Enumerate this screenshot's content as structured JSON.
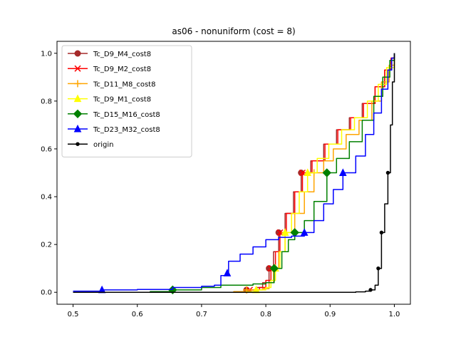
{
  "chart_data": {
    "type": "line",
    "title": "as06 - nonuniform (cost = 8)",
    "xlabel": "",
    "ylabel": "",
    "xlim": [
      0.475,
      1.025
    ],
    "ylim": [
      -0.05,
      1.05
    ],
    "xticks": [
      "0.5",
      "0.6",
      "0.7",
      "0.8",
      "0.9",
      "1.0"
    ],
    "xtick_values": [
      0.5,
      0.6,
      0.7,
      0.8,
      0.9,
      1.0
    ],
    "yticks": [
      "0.0",
      "0.2",
      "0.4",
      "0.6",
      "0.8",
      "1.0"
    ],
    "ytick_values": [
      0.0,
      0.2,
      0.4,
      0.6,
      0.8,
      1.0
    ],
    "grid": false,
    "legend_position": "upper-left",
    "series": [
      {
        "name": "Tc_D9_M4_cost8",
        "color": "#a52a2a",
        "marker": "circle",
        "points": [
          [
            0.5,
            0.0
          ],
          [
            0.76,
            0.003
          ],
          [
            0.77,
            0.01
          ],
          [
            0.785,
            0.02
          ],
          [
            0.795,
            0.04
          ],
          [
            0.805,
            0.1
          ],
          [
            0.812,
            0.17
          ],
          [
            0.82,
            0.25
          ],
          [
            0.83,
            0.33
          ],
          [
            0.843,
            0.42
          ],
          [
            0.855,
            0.5
          ],
          [
            0.87,
            0.55
          ],
          [
            0.89,
            0.62
          ],
          [
            0.91,
            0.68
          ],
          [
            0.93,
            0.73
          ],
          [
            0.95,
            0.79
          ],
          [
            0.97,
            0.86
          ],
          [
            0.985,
            0.93
          ],
          [
            0.995,
            0.98
          ],
          [
            1.0,
            1.0
          ]
        ],
        "markers": [
          [
            0.77,
            0.01
          ],
          [
            0.805,
            0.1
          ],
          [
            0.82,
            0.25
          ],
          [
            0.855,
            0.5
          ]
        ]
      },
      {
        "name": "Tc_D9_M2_cost8",
        "color": "#ff0000",
        "marker": "x",
        "points": [
          [
            0.5,
            0.0
          ],
          [
            0.765,
            0.003
          ],
          [
            0.775,
            0.01
          ],
          [
            0.79,
            0.02
          ],
          [
            0.8,
            0.05
          ],
          [
            0.808,
            0.1
          ],
          [
            0.815,
            0.17
          ],
          [
            0.822,
            0.25
          ],
          [
            0.832,
            0.33
          ],
          [
            0.845,
            0.42
          ],
          [
            0.857,
            0.5
          ],
          [
            0.872,
            0.55
          ],
          [
            0.892,
            0.62
          ],
          [
            0.912,
            0.68
          ],
          [
            0.932,
            0.73
          ],
          [
            0.952,
            0.79
          ],
          [
            0.97,
            0.86
          ],
          [
            0.985,
            0.93
          ],
          [
            0.995,
            0.98
          ],
          [
            1.0,
            1.0
          ]
        ],
        "markers": [
          [
            0.775,
            0.01
          ],
          [
            0.808,
            0.1
          ],
          [
            0.822,
            0.25
          ],
          [
            0.857,
            0.5
          ]
        ]
      },
      {
        "name": "Tc_D11_M8_cost8",
        "color": "#ffa500",
        "marker": "plus",
        "points": [
          [
            0.5,
            0.0
          ],
          [
            0.75,
            0.003
          ],
          [
            0.77,
            0.01
          ],
          [
            0.795,
            0.015
          ],
          [
            0.805,
            0.04
          ],
          [
            0.812,
            0.1
          ],
          [
            0.82,
            0.17
          ],
          [
            0.83,
            0.25
          ],
          [
            0.845,
            0.33
          ],
          [
            0.86,
            0.42
          ],
          [
            0.875,
            0.5
          ],
          [
            0.89,
            0.55
          ],
          [
            0.905,
            0.6
          ],
          [
            0.925,
            0.66
          ],
          [
            0.945,
            0.72
          ],
          [
            0.965,
            0.8
          ],
          [
            0.98,
            0.88
          ],
          [
            0.992,
            0.95
          ],
          [
            1.0,
            1.0
          ]
        ],
        "markers": [
          [
            0.77,
            0.01
          ],
          [
            0.812,
            0.1
          ],
          [
            0.83,
            0.25
          ],
          [
            0.875,
            0.5
          ]
        ]
      },
      {
        "name": "Tc_D9_M1_cost8",
        "color": "#ffff00",
        "marker": "triangle",
        "points": [
          [
            0.5,
            0.0
          ],
          [
            0.77,
            0.003
          ],
          [
            0.785,
            0.01
          ],
          [
            0.8,
            0.02
          ],
          [
            0.808,
            0.05
          ],
          [
            0.815,
            0.1
          ],
          [
            0.822,
            0.17
          ],
          [
            0.83,
            0.25
          ],
          [
            0.84,
            0.33
          ],
          [
            0.852,
            0.42
          ],
          [
            0.865,
            0.5
          ],
          [
            0.88,
            0.56
          ],
          [
            0.898,
            0.62
          ],
          [
            0.918,
            0.68
          ],
          [
            0.938,
            0.73
          ],
          [
            0.958,
            0.8
          ],
          [
            0.975,
            0.87
          ],
          [
            0.988,
            0.94
          ],
          [
            1.0,
            1.0
          ]
        ],
        "markers": [
          [
            0.785,
            0.01
          ],
          [
            0.815,
            0.1
          ],
          [
            0.83,
            0.25
          ],
          [
            0.865,
            0.5
          ]
        ]
      },
      {
        "name": "Tc_D15_M16_cost8",
        "color": "#008000",
        "marker": "diamond",
        "points": [
          [
            0.5,
            0.0
          ],
          [
            0.62,
            0.003
          ],
          [
            0.655,
            0.01
          ],
          [
            0.7,
            0.02
          ],
          [
            0.73,
            0.03
          ],
          [
            0.78,
            0.035
          ],
          [
            0.8,
            0.04
          ],
          [
            0.813,
            0.1
          ],
          [
            0.825,
            0.17
          ],
          [
            0.835,
            0.22
          ],
          [
            0.845,
            0.25
          ],
          [
            0.86,
            0.3
          ],
          [
            0.875,
            0.38
          ],
          [
            0.895,
            0.5
          ],
          [
            0.91,
            0.56
          ],
          [
            0.93,
            0.63
          ],
          [
            0.95,
            0.72
          ],
          [
            0.968,
            0.82
          ],
          [
            0.982,
            0.9
          ],
          [
            0.993,
            0.97
          ],
          [
            1.0,
            1.0
          ]
        ],
        "markers": [
          [
            0.655,
            0.01
          ],
          [
            0.813,
            0.1
          ],
          [
            0.845,
            0.25
          ],
          [
            0.895,
            0.5
          ]
        ]
      },
      {
        "name": "Tc_D23_M32_cost8",
        "color": "#0000ff",
        "marker": "triangle",
        "points": [
          [
            0.5,
            0.005
          ],
          [
            0.545,
            0.01
          ],
          [
            0.6,
            0.012
          ],
          [
            0.655,
            0.02
          ],
          [
            0.7,
            0.025
          ],
          [
            0.72,
            0.03
          ],
          [
            0.73,
            0.07
          ],
          [
            0.74,
            0.08
          ],
          [
            0.742,
            0.13
          ],
          [
            0.76,
            0.16
          ],
          [
            0.78,
            0.19
          ],
          [
            0.8,
            0.22
          ],
          [
            0.82,
            0.23
          ],
          [
            0.84,
            0.235
          ],
          [
            0.86,
            0.25
          ],
          [
            0.875,
            0.3
          ],
          [
            0.89,
            0.37
          ],
          [
            0.905,
            0.43
          ],
          [
            0.92,
            0.5
          ],
          [
            0.94,
            0.57
          ],
          [
            0.955,
            0.66
          ],
          [
            0.968,
            0.75
          ],
          [
            0.98,
            0.85
          ],
          [
            0.99,
            0.93
          ],
          [
            0.996,
            0.98
          ],
          [
            1.0,
            1.0
          ]
        ],
        "markers": [
          [
            0.545,
            0.01
          ],
          [
            0.74,
            0.08
          ],
          [
            0.86,
            0.25
          ],
          [
            0.92,
            0.5
          ]
        ]
      },
      {
        "name": "origin",
        "color": "#000000",
        "marker": "dot",
        "points": [
          [
            0.5,
            0.0
          ],
          [
            0.9,
            0.0
          ],
          [
            0.94,
            0.002
          ],
          [
            0.955,
            0.005
          ],
          [
            0.963,
            0.01
          ],
          [
            0.97,
            0.03
          ],
          [
            0.975,
            0.1
          ],
          [
            0.98,
            0.25
          ],
          [
            0.985,
            0.37
          ],
          [
            0.99,
            0.5
          ],
          [
            0.994,
            0.7
          ],
          [
            0.997,
            0.88
          ],
          [
            1.0,
            1.0
          ]
        ],
        "markers": [
          [
            0.963,
            0.01
          ],
          [
            0.975,
            0.1
          ],
          [
            0.98,
            0.25
          ],
          [
            0.99,
            0.5
          ]
        ]
      }
    ]
  }
}
